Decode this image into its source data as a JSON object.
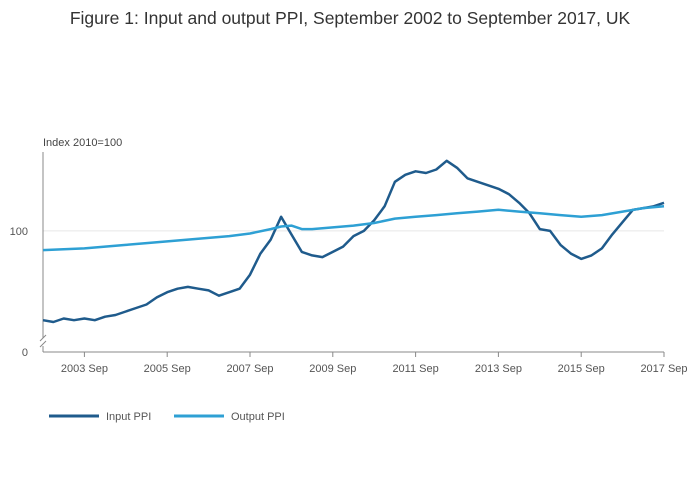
{
  "chart_data": {
    "type": "line",
    "title": "Figure 1: Input and output PPI, September 2002 to September 2017, UK",
    "ylabel": "Index 2010=100",
    "xlabel": "",
    "yticks": [
      0,
      100
    ],
    "ylim": [
      0,
      145
    ],
    "axis_break": "y-axis broken between 0 and 40",
    "xlim": [
      "2002 Sep",
      "2017 Sep"
    ],
    "xticks": [
      "2003 Sep",
      "2005 Sep",
      "2007 Sep",
      "2009 Sep",
      "2011 Sep",
      "2013 Sep",
      "2015 Sep",
      "2017 Sep"
    ],
    "legend_position": "bottom-left",
    "colors": {
      "input": "#1f5b8c",
      "output": "#2ea0d4",
      "grid": "#e6e6e6",
      "axis": "#888888"
    },
    "series": [
      {
        "name": "Input PPI",
        "points": [
          [
            2002.67,
            49
          ],
          [
            2002.92,
            48
          ],
          [
            2003.17,
            50
          ],
          [
            2003.42,
            49
          ],
          [
            2003.67,
            50
          ],
          [
            2003.92,
            49
          ],
          [
            2004.17,
            51
          ],
          [
            2004.42,
            52
          ],
          [
            2004.67,
            54
          ],
          [
            2004.92,
            56
          ],
          [
            2005.17,
            58
          ],
          [
            2005.42,
            62
          ],
          [
            2005.67,
            65
          ],
          [
            2005.92,
            67
          ],
          [
            2006.17,
            68
          ],
          [
            2006.42,
            67
          ],
          [
            2006.67,
            66
          ],
          [
            2006.92,
            63
          ],
          [
            2007.17,
            65
          ],
          [
            2007.42,
            67
          ],
          [
            2007.67,
            75
          ],
          [
            2007.92,
            87
          ],
          [
            2008.17,
            95
          ],
          [
            2008.42,
            108
          ],
          [
            2008.67,
            98
          ],
          [
            2008.92,
            88
          ],
          [
            2009.17,
            86
          ],
          [
            2009.42,
            85
          ],
          [
            2009.67,
            88
          ],
          [
            2009.92,
            91
          ],
          [
            2010.17,
            97
          ],
          [
            2010.42,
            100
          ],
          [
            2010.67,
            106
          ],
          [
            2010.92,
            114
          ],
          [
            2011.17,
            128
          ],
          [
            2011.42,
            132
          ],
          [
            2011.67,
            134
          ],
          [
            2011.92,
            133
          ],
          [
            2012.17,
            135
          ],
          [
            2012.42,
            140
          ],
          [
            2012.67,
            136
          ],
          [
            2012.92,
            130
          ],
          [
            2013.17,
            128
          ],
          [
            2013.42,
            126
          ],
          [
            2013.67,
            124
          ],
          [
            2013.92,
            121
          ],
          [
            2014.17,
            116
          ],
          [
            2014.42,
            110
          ],
          [
            2014.67,
            101
          ],
          [
            2014.92,
            100
          ],
          [
            2015.17,
            92
          ],
          [
            2015.42,
            87
          ],
          [
            2015.67,
            84
          ],
          [
            2015.92,
            86
          ],
          [
            2016.17,
            90
          ],
          [
            2016.42,
            98
          ],
          [
            2016.67,
            105
          ],
          [
            2016.92,
            112
          ],
          [
            2017.17,
            113
          ],
          [
            2017.42,
            114
          ],
          [
            2017.67,
            116
          ]
        ]
      },
      {
        "name": "Output PPI",
        "points": [
          [
            2002.67,
            89
          ],
          [
            2003.17,
            89.5
          ],
          [
            2003.67,
            90
          ],
          [
            2004.17,
            91
          ],
          [
            2004.67,
            92
          ],
          [
            2005.17,
            93
          ],
          [
            2005.67,
            94
          ],
          [
            2006.17,
            95
          ],
          [
            2006.67,
            96
          ],
          [
            2007.17,
            97
          ],
          [
            2007.67,
            98.5
          ],
          [
            2008.17,
            101
          ],
          [
            2008.42,
            102.5
          ],
          [
            2008.67,
            103
          ],
          [
            2008.92,
            101
          ],
          [
            2009.17,
            101
          ],
          [
            2009.67,
            102
          ],
          [
            2010.17,
            103
          ],
          [
            2010.67,
            104.5
          ],
          [
            2011.17,
            107
          ],
          [
            2011.67,
            108
          ],
          [
            2012.17,
            109
          ],
          [
            2012.67,
            110
          ],
          [
            2013.17,
            111
          ],
          [
            2013.67,
            112
          ],
          [
            2014.17,
            111
          ],
          [
            2014.67,
            110
          ],
          [
            2015.17,
            109
          ],
          [
            2015.67,
            108
          ],
          [
            2016.17,
            109
          ],
          [
            2016.67,
            111
          ],
          [
            2017.17,
            113
          ],
          [
            2017.67,
            114
          ]
        ]
      }
    ]
  }
}
